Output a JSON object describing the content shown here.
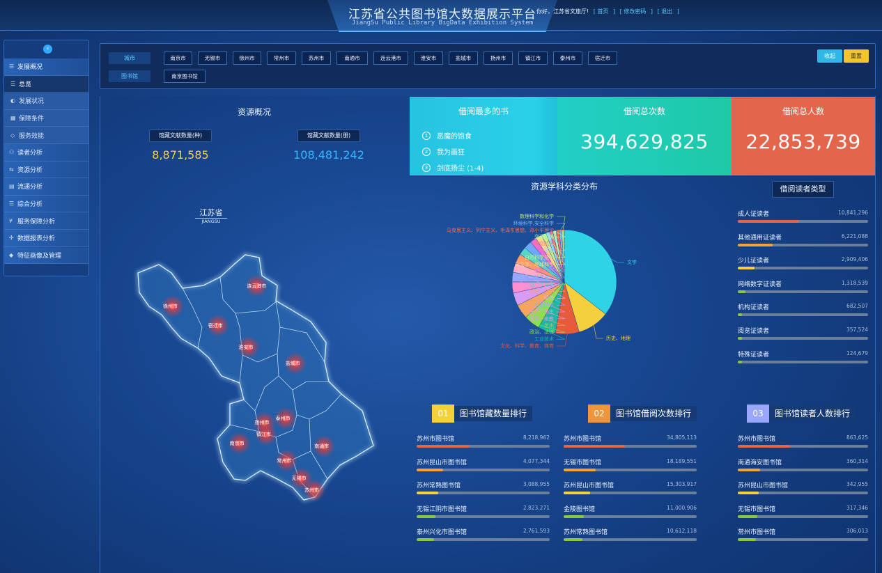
{
  "header": {
    "title": "江苏省公共图书馆大数据展示平台",
    "subtitle": "JiangSu Public Library BigData Exhibition System",
    "greeting": "你好，江苏省文旅厅!",
    "links": [
      "首页",
      "修改密码",
      "退出"
    ]
  },
  "sidebar": {
    "collapse_icon": "chevron-left-icon",
    "items": [
      {
        "label": "发展概况",
        "icon": "grid-icon",
        "kind": "top"
      },
      {
        "label": "总览",
        "icon": "grid-icon",
        "kind": "sub-active"
      },
      {
        "label": "发展状况",
        "icon": "globe-icon",
        "kind": "sub"
      },
      {
        "label": "保障条件",
        "icon": "table-icon",
        "kind": "sub"
      },
      {
        "label": "服务效能",
        "icon": "diamond-icon",
        "kind": "sub"
      },
      {
        "label": "读者分析",
        "icon": "users-icon",
        "kind": "top"
      },
      {
        "label": "资源分析",
        "icon": "share-icon",
        "kind": "top"
      },
      {
        "label": "流通分析",
        "icon": "flow-icon",
        "kind": "top"
      },
      {
        "label": "综合分析",
        "icon": "grid-icon",
        "kind": "top"
      },
      {
        "label": "服务保障分析",
        "icon": "yen-icon",
        "kind": "top"
      },
      {
        "label": "数据报表分析",
        "icon": "report-icon",
        "kind": "top"
      },
      {
        "label": "特征画像及管理",
        "icon": "tag-icon",
        "kind": "top"
      }
    ]
  },
  "filters": {
    "city_label": "城市",
    "library_label": "图书馆",
    "cities": [
      "南京市",
      "无锡市",
      "徐州市",
      "常州市",
      "苏州市",
      "南通市",
      "连云港市",
      "淮安市",
      "盐城市",
      "扬州市",
      "镇江市",
      "泰州市",
      "宿迁市"
    ],
    "libraries": [
      "南京图书馆"
    ],
    "collapse_button": "收起",
    "reset_button": "重置"
  },
  "resource_overview": {
    "title": "资源概况",
    "kinds_label": "馆藏文献数量(种)",
    "kinds_value": "8,871,585",
    "volumes_label": "馆藏文献数量(册)",
    "volumes_value": "108,481,242"
  },
  "map": {
    "title": "江苏省",
    "subtitle": "JIANGSU",
    "cities": [
      {
        "label": "连云港市",
        "lon": 119.22,
        "lat": 34.6
      },
      {
        "label": "徐州市",
        "lon": 117.18,
        "lat": 34.27
      },
      {
        "label": "宿迁市",
        "lon": 118.28,
        "lat": 33.96
      },
      {
        "label": "淮安市",
        "lon": 119.02,
        "lat": 33.61
      },
      {
        "label": "盐城市",
        "lon": 120.16,
        "lat": 33.35
      },
      {
        "label": "扬州市",
        "lon": 119.41,
        "lat": 32.39
      },
      {
        "label": "泰州市",
        "lon": 119.92,
        "lat": 32.46
      },
      {
        "label": "南京市",
        "lon": 118.8,
        "lat": 32.06
      },
      {
        "label": "镇江市",
        "lon": 119.45,
        "lat": 32.2
      },
      {
        "label": "常州市",
        "lon": 119.95,
        "lat": 31.78
      },
      {
        "label": "南通市",
        "lon": 120.86,
        "lat": 32.01
      },
      {
        "label": "无锡市",
        "lon": 120.31,
        "lat": 31.49
      },
      {
        "label": "苏州市",
        "lon": 120.62,
        "lat": 31.3
      }
    ]
  },
  "top_books": {
    "title": "借阅最多的书",
    "items": [
      {
        "num": "1",
        "title": "恶魔的饱食"
      },
      {
        "num": "2",
        "title": "我为画狂"
      },
      {
        "num": "3",
        "title": "剑底扬尘 (1-4)"
      }
    ],
    "color": "#27c5e3"
  },
  "total_loans": {
    "title": "借阅总次数",
    "value": "394,629,825",
    "color": "#1ec9b0"
  },
  "total_readers": {
    "title": "借阅总人数",
    "value": "22,853,739",
    "color": "#e2654c"
  },
  "subject_chart": {
    "title": "资源学科分类分布"
  },
  "chart_data": {
    "type": "pie",
    "title": "资源学科分类分布",
    "series": [
      {
        "label": "文学",
        "value": 36,
        "color": "#2ed3e6"
      },
      {
        "label": "历史、地理",
        "value": 10,
        "color": "#f4d03f"
      },
      {
        "label": "文化、科学、教育、体育",
        "value": 7.5,
        "color": "#e55b3c"
      },
      {
        "label": "工业技术",
        "value": 5.5,
        "color": "#1bb8a2"
      },
      {
        "label": "政治、法律",
        "value": 5,
        "color": "#8be04e"
      },
      {
        "label": "艺术",
        "value": 4.5,
        "color": "#f5a65b"
      },
      {
        "label": "哲学、宗教",
        "value": 4,
        "color": "#d79cf5"
      },
      {
        "label": "医药、卫生",
        "value": 3.5,
        "color": "#ff8fd0"
      },
      {
        "label": "农业科学",
        "value": 3,
        "color": "#9aa7ff"
      },
      {
        "label": "经济",
        "value": 3,
        "color": "#ffb0c8"
      },
      {
        "label": "语言、文字",
        "value": 3,
        "color": "#ff9a6b"
      },
      {
        "label": "综合性图书",
        "value": 2.5,
        "color": "#57d6c8"
      },
      {
        "label": "社会科学总论",
        "value": 2.5,
        "color": "#6fa8ff"
      },
      {
        "label": "生物科学",
        "value": 2,
        "color": "#f06ad4"
      },
      {
        "label": "天文学、地球科学",
        "value": 2,
        "color": "#ffd58a"
      },
      {
        "label": "自然科学总论",
        "value": 1.5,
        "color": "#c1f08c"
      },
      {
        "label": "军事",
        "value": 1.2,
        "color": "#8fd5ff"
      },
      {
        "label": "航空航天",
        "value": 1,
        "color": "#ff7a7a"
      },
      {
        "label": "交通运输",
        "value": 1,
        "color": "#a6ffb0"
      },
      {
        "label": "马克思主义、列宁主义、毛泽东思想、邓小平理论",
        "value": 1,
        "color": "#ff6e50"
      },
      {
        "label": "环境科学,安全科学",
        "value": 0.8,
        "color": "#7bb6ff"
      },
      {
        "label": "数理科学和化学",
        "value": 0.8,
        "color": "#b8e86b"
      }
    ]
  },
  "reader_types": {
    "title": "借阅读者类型",
    "items": [
      {
        "label": "成人证读者",
        "value": "10,841,296",
        "ratio": 0.47,
        "color": "#e2654c"
      },
      {
        "label": "其他通用证读者",
        "value": "6,221,088",
        "ratio": 0.27,
        "color": "#f4a33b"
      },
      {
        "label": "少儿证读者",
        "value": "2,909,406",
        "ratio": 0.13,
        "color": "#f4d03f"
      },
      {
        "label": "网络数字证读者",
        "value": "1,318,539",
        "ratio": 0.06,
        "color": "#8cc53f"
      },
      {
        "label": "机构证读者",
        "value": "682,507",
        "ratio": 0.03,
        "color": "#8cc53f"
      },
      {
        "label": "阅览证读者",
        "value": "357,524",
        "ratio": 0.015,
        "color": "#8cc53f"
      },
      {
        "label": "特殊证读者",
        "value": "124,679",
        "ratio": 0.006,
        "color": "#8cc53f"
      }
    ]
  },
  "rankings": [
    {
      "num": "01",
      "title": "图书馆藏数量排行",
      "num_color": "#f4d03f",
      "rows": [
        {
          "name": "苏州市图书馆",
          "value": "8,218,962",
          "ratio": 0.4,
          "color": "#e2654c"
        },
        {
          "name": "苏州昆山市图书馆",
          "value": "4,077,344",
          "ratio": 0.2,
          "color": "#f4a33b"
        },
        {
          "name": "苏州常熟图书馆",
          "value": "3,088,955",
          "ratio": 0.16,
          "color": "#f4d03f"
        },
        {
          "name": "无锡江阴市图书馆",
          "value": "2,823,271",
          "ratio": 0.14,
          "color": "#8cc53f"
        },
        {
          "name": "泰州兴化市图书馆",
          "value": "2,761,593",
          "ratio": 0.13,
          "color": "#8cc53f"
        }
      ]
    },
    {
      "num": "02",
      "title": "图书馆借阅次数排行",
      "num_color": "#f0963a",
      "rows": [
        {
          "name": "苏州市图书馆",
          "value": "34,805,113",
          "ratio": 0.46,
          "color": "#e2654c"
        },
        {
          "name": "无锡市图书馆",
          "value": "18,189,551",
          "ratio": 0.24,
          "color": "#f4a33b"
        },
        {
          "name": "苏州昆山市图书馆",
          "value": "15,303,917",
          "ratio": 0.2,
          "color": "#f4d03f"
        },
        {
          "name": "金陵图书馆",
          "value": "11,000,906",
          "ratio": 0.15,
          "color": "#8cc53f"
        },
        {
          "name": "苏州常熟图书馆",
          "value": "10,612,118",
          "ratio": 0.14,
          "color": "#8cc53f"
        }
      ]
    },
    {
      "num": "03",
      "title": "图书馆读者人数排行",
      "num_color": "#9aa7ff",
      "rows": [
        {
          "name": "苏州市图书馆",
          "value": "863,625",
          "ratio": 0.4,
          "color": "#e2654c"
        },
        {
          "name": "南通海安图书馆",
          "value": "360,314",
          "ratio": 0.17,
          "color": "#f4a33b"
        },
        {
          "name": "苏州昆山市图书馆",
          "value": "342,955",
          "ratio": 0.16,
          "color": "#f4d03f"
        },
        {
          "name": "无锡市图书馆",
          "value": "317,346",
          "ratio": 0.15,
          "color": "#8cc53f"
        },
        {
          "name": "常州市图书馆",
          "value": "306,013",
          "ratio": 0.14,
          "color": "#8cc53f"
        }
      ]
    }
  ]
}
